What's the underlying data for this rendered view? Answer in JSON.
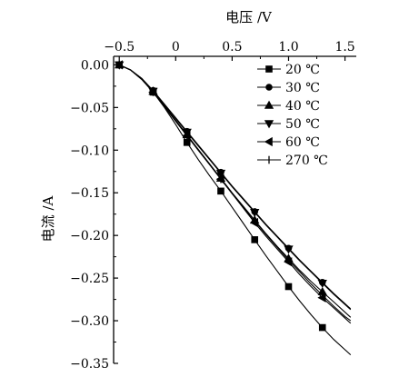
{
  "chart_data": {
    "type": "line",
    "xlabel": "电压 /V",
    "ylabel": "电流 /A",
    "x_axis_position": "top",
    "xlim": [
      -0.55,
      1.6
    ],
    "ylim": [
      -0.35,
      0.01
    ],
    "xticks": [
      -0.5,
      0.0,
      0.5,
      1.0,
      1.5
    ],
    "xtick_labels": [
      "−0.5",
      "0",
      "0.5",
      "1.0",
      "1.5"
    ],
    "yticks": [
      0.0,
      -0.05,
      -0.1,
      -0.15,
      -0.2,
      -0.25,
      -0.3,
      -0.35
    ],
    "ytick_labels": [
      "0.00",
      "−0.05",
      "−0.10",
      "−0.15",
      "−0.20",
      "−0.25",
      "−0.30",
      "−0.35"
    ],
    "legend_position": "top-right",
    "grid": false,
    "series": [
      {
        "name": "20 ℃",
        "marker": "square",
        "x": [
          -0.5,
          -0.4,
          -0.3,
          -0.2,
          -0.1,
          0.0,
          0.1,
          0.2,
          0.3,
          0.4,
          0.5,
          0.6,
          0.7,
          0.8,
          0.9,
          1.0,
          1.1,
          1.2,
          1.3,
          1.4,
          1.5,
          1.55
        ],
        "y": [
          0.0,
          -0.006,
          -0.017,
          -0.032,
          -0.05,
          -0.07,
          -0.091,
          -0.111,
          -0.13,
          -0.148,
          -0.167,
          -0.186,
          -0.205,
          -0.224,
          -0.242,
          -0.26,
          -0.277,
          -0.293,
          -0.308,
          -0.322,
          -0.334,
          -0.34
        ],
        "marker_x": [
          -0.5,
          -0.2,
          0.1,
          0.4,
          0.7,
          1.0,
          1.3
        ]
      },
      {
        "name": "30 ℃",
        "marker": "circle",
        "x": [
          -0.5,
          -0.4,
          -0.3,
          -0.2,
          -0.1,
          0.0,
          0.1,
          0.2,
          0.3,
          0.4,
          0.5,
          0.6,
          0.7,
          0.8,
          0.9,
          1.0,
          1.1,
          1.2,
          1.3,
          1.4,
          1.5,
          1.55
        ],
        "y": [
          0.0,
          -0.006,
          -0.016,
          -0.03,
          -0.046,
          -0.062,
          -0.078,
          -0.094,
          -0.11,
          -0.126,
          -0.142,
          -0.157,
          -0.172,
          -0.187,
          -0.201,
          -0.215,
          -0.229,
          -0.242,
          -0.255,
          -0.268,
          -0.28,
          -0.286
        ],
        "marker_x": [
          -0.5,
          -0.2,
          0.1,
          0.4,
          0.7,
          1.0,
          1.3
        ]
      },
      {
        "name": "40 ℃",
        "marker": "triangle-up",
        "x": [
          -0.5,
          -0.4,
          -0.3,
          -0.2,
          -0.1,
          0.0,
          0.1,
          0.2,
          0.3,
          0.4,
          0.5,
          0.6,
          0.7,
          0.8,
          0.9,
          1.0,
          1.1,
          1.2,
          1.3,
          1.4,
          1.5,
          1.55
        ],
        "y": [
          0.0,
          -0.006,
          -0.016,
          -0.031,
          -0.048,
          -0.065,
          -0.082,
          -0.099,
          -0.116,
          -0.133,
          -0.15,
          -0.166,
          -0.182,
          -0.198,
          -0.213,
          -0.227,
          -0.241,
          -0.254,
          -0.266,
          -0.278,
          -0.29,
          -0.296
        ],
        "marker_x": [
          -0.5,
          -0.2,
          0.1,
          0.4,
          0.7,
          1.0,
          1.3
        ]
      },
      {
        "name": "50 ℃",
        "marker": "triangle-down",
        "x": [
          -0.5,
          -0.4,
          -0.3,
          -0.2,
          -0.1,
          0.0,
          0.1,
          0.2,
          0.3,
          0.4,
          0.5,
          0.6,
          0.7,
          0.8,
          0.9,
          1.0,
          1.1,
          1.2,
          1.3,
          1.4,
          1.5,
          1.55
        ],
        "y": [
          0.0,
          -0.006,
          -0.016,
          -0.031,
          -0.047,
          -0.063,
          -0.079,
          -0.095,
          -0.111,
          -0.127,
          -0.143,
          -0.158,
          -0.173,
          -0.188,
          -0.202,
          -0.216,
          -0.23,
          -0.243,
          -0.256,
          -0.269,
          -0.281,
          -0.287
        ],
        "marker_x": [
          -0.5,
          -0.2,
          0.1,
          0.4,
          0.7,
          1.0,
          1.3
        ]
      },
      {
        "name": "60 ℃",
        "marker": "triangle-left",
        "x": [
          -0.5,
          -0.4,
          -0.3,
          -0.2,
          -0.1,
          0.0,
          0.1,
          0.2,
          0.3,
          0.4,
          0.5,
          0.6,
          0.7,
          0.8,
          0.9,
          1.0,
          1.1,
          1.2,
          1.3,
          1.4,
          1.5,
          1.55
        ],
        "y": [
          0.0,
          -0.006,
          -0.017,
          -0.032,
          -0.049,
          -0.066,
          -0.083,
          -0.1,
          -0.117,
          -0.134,
          -0.151,
          -0.168,
          -0.185,
          -0.201,
          -0.216,
          -0.231,
          -0.246,
          -0.26,
          -0.273,
          -0.285,
          -0.297,
          -0.303
        ],
        "marker_x": [
          -0.5,
          -0.2,
          0.1,
          0.4,
          0.7,
          1.0,
          1.3
        ]
      },
      {
        "name": "270 ℃",
        "marker": "vertical-tick",
        "x": [
          -0.5,
          -0.4,
          -0.3,
          -0.2,
          -0.1,
          0.0,
          0.1,
          0.2,
          0.3,
          0.4,
          0.5,
          0.6,
          0.7,
          0.8,
          0.9,
          1.0,
          1.1,
          1.2,
          1.3,
          1.4,
          1.5,
          1.55
        ],
        "y": [
          0.0,
          -0.006,
          -0.017,
          -0.032,
          -0.049,
          -0.066,
          -0.083,
          -0.1,
          -0.117,
          -0.134,
          -0.151,
          -0.167,
          -0.183,
          -0.199,
          -0.214,
          -0.229,
          -0.243,
          -0.257,
          -0.27,
          -0.283,
          -0.295,
          -0.3
        ],
        "marker_x": [
          -0.5,
          -0.2,
          0.1,
          0.4,
          0.7,
          1.0,
          1.3
        ]
      }
    ]
  }
}
